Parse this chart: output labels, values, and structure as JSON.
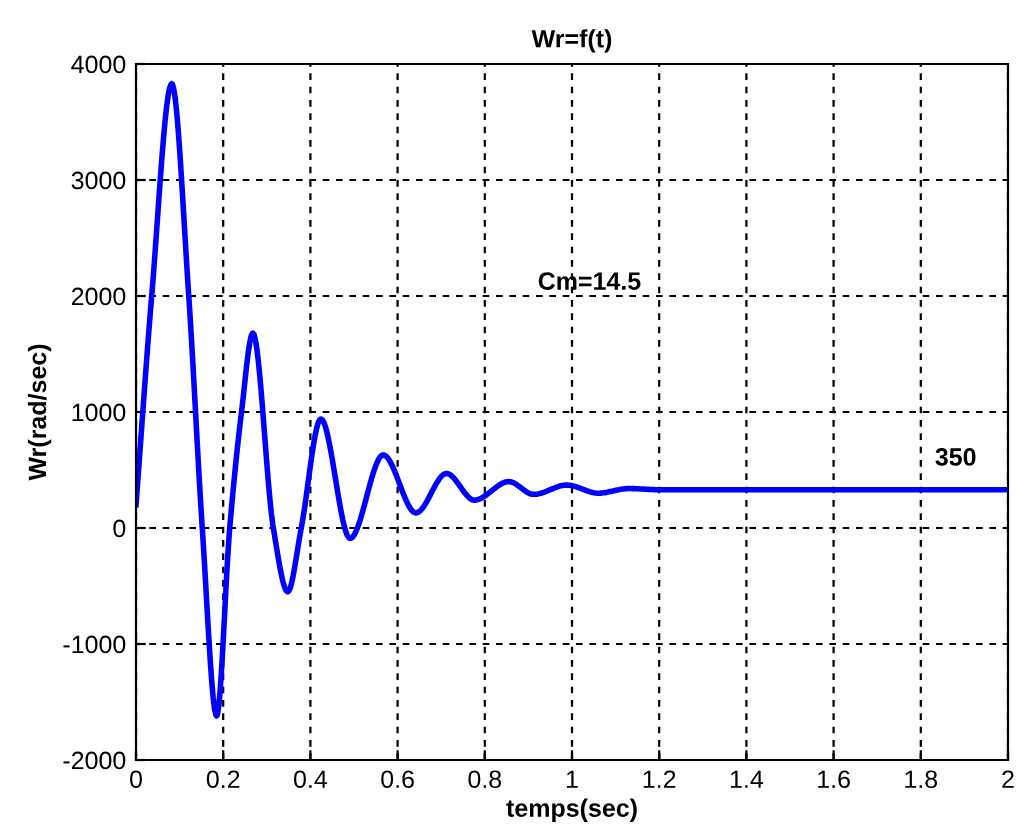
{
  "chart_data": {
    "type": "line",
    "title": "Wr=f(t)",
    "xlabel": "temps(sec)",
    "ylabel": "Wr(rad/sec)",
    "xlim": [
      0,
      2
    ],
    "xticks": [
      0,
      0.2,
      0.4,
      0.6,
      0.8,
      1,
      1.2,
      1.4,
      1.6,
      1.8,
      2
    ],
    "ylim": [
      -2000,
      4000
    ],
    "yticks": [
      -2000,
      -1000,
      0,
      1000,
      2000,
      3000,
      4000
    ],
    "grid": true,
    "line_style": "solid",
    "marker": "none",
    "series": [
      {
        "color": "#0000ff",
        "x": [
          0,
          0.036,
          0.082,
          0.121,
          0.152,
          0.185,
          0.215,
          0.242,
          0.268,
          0.315,
          0.348,
          0.379,
          0.424,
          0.491,
          0.567,
          0.642,
          0.712,
          0.776,
          0.855,
          0.912,
          0.988,
          1.06,
          1.13,
          1.2,
          1.4,
          1.6,
          2
        ],
        "values": [
          200,
          2000,
          3830,
          2000,
          0,
          -1620,
          0,
          1000,
          1680,
          0,
          -550,
          0,
          940,
          -90,
          630,
          130,
          470,
          240,
          400,
          290,
          370,
          300,
          340,
          330,
          330,
          330,
          330
        ]
      }
    ],
    "annotations": [
      "Cm=14.5",
      {
        "text": "350",
        "x": 1.88,
        "y": 350
      }
    ]
  }
}
